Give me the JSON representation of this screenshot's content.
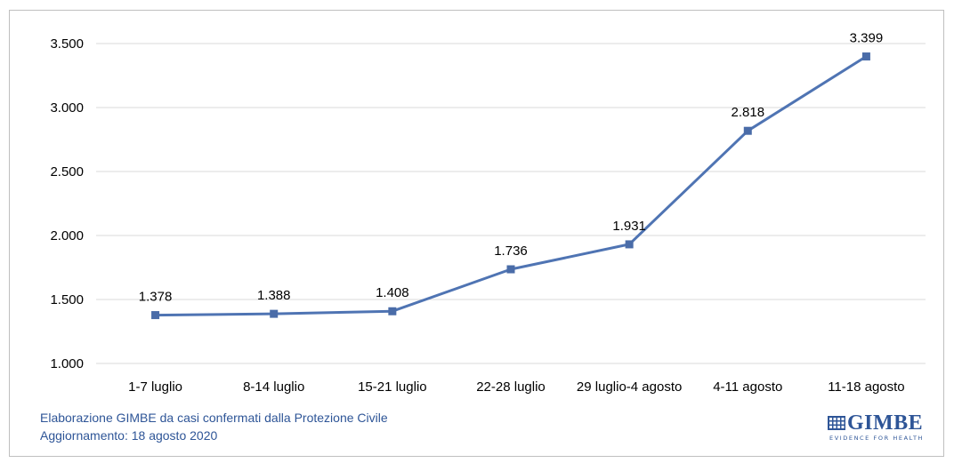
{
  "chart_data": {
    "type": "line",
    "title": "",
    "xlabel": "",
    "ylabel": "",
    "categories": [
      "1-7 luglio",
      "8-14 luglio",
      "15-21 luglio",
      "22-28 luglio",
      "29 luglio-4 agosto",
      "4-11 agosto",
      "11-18 agosto"
    ],
    "series": [
      {
        "values": [
          1378,
          1388,
          1408,
          1736,
          1931,
          2818,
          3399
        ]
      }
    ],
    "data_labels": [
      "1.378",
      "1.388",
      "1.408",
      "1.736",
      "1.931",
      "2.818",
      "3.399"
    ],
    "ylim": [
      1000,
      3500
    ],
    "yticks": [
      1000,
      1500,
      2000,
      2500,
      3000,
      3500
    ],
    "ytick_labels": [
      "1.000",
      "1.500",
      "2.000",
      "2.500",
      "3.000",
      "3.500"
    ],
    "grid": true,
    "legend": "none",
    "line_color": "#4f74b3",
    "marker_color": "#4a6ca8",
    "grid_color": "#d9d9d9"
  },
  "footer": {
    "source_line1": "Elaborazione GIMBE da casi confermati dalla Protezione Civile",
    "source_line2": "Aggiornamento: 18 agosto 2020"
  },
  "logo": {
    "name": "GIMBE",
    "tagline": "EVIDENCE FOR HEALTH",
    "color": "#2e5597"
  }
}
